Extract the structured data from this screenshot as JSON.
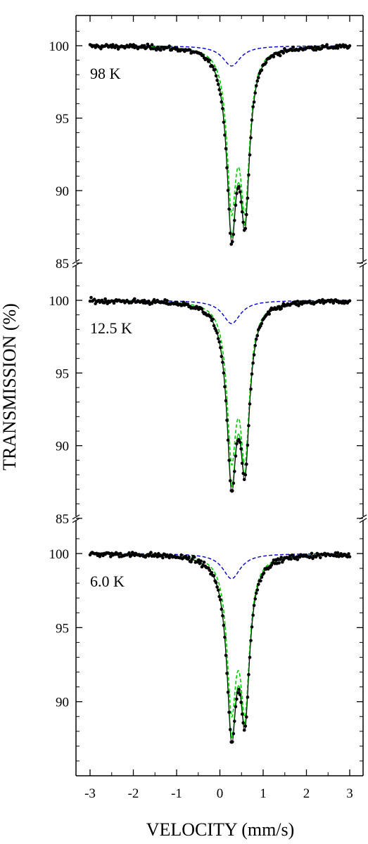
{
  "chart_data": {
    "type": "scatter",
    "xlabel": "VELOCITY (mm/s)",
    "ylabel": "TRANSMISSION (%)",
    "xlim": [
      -3.2,
      3.2
    ],
    "x_ticks": [
      -3,
      -2,
      -1,
      0,
      1,
      2,
      3
    ],
    "x_tick_labels": [
      "-3",
      "-2",
      "-1",
      "0",
      "1",
      "2",
      "3"
    ],
    "y_ticks": [
      100,
      95,
      90,
      85
    ],
    "y_tick_labels": [
      "100",
      "95",
      "90",
      "85"
    ],
    "axis_break": true,
    "colors": {
      "data_points": "#000000",
      "total_fit": "#000000",
      "main_component": "#00cc00",
      "minor_component": "#0000cc"
    },
    "panels": [
      {
        "label": "98 K",
        "ylim": [
          85,
          101.3
        ],
        "min_at_0_27": 86.4,
        "min_at_0_58": 87.6,
        "component_main": {
          "centers": [
            0.27,
            0.58
          ],
          "depths": [
            11.7,
            11.6
          ],
          "widths": [
            0.13,
            0.13
          ],
          "style": "dashed"
        },
        "component_minor": {
          "centers": [
            0.27
          ],
          "depths": [
            1.4
          ],
          "widths": [
            0.25
          ],
          "style": "dashed"
        }
      },
      {
        "label": "12.5 K",
        "ylim": [
          85,
          101.3
        ],
        "min_at_0_27": 86.8,
        "min_at_0_58": 88.0,
        "component_main": {
          "centers": [
            0.27,
            0.58
          ],
          "depths": [
            11.3,
            11.3
          ],
          "widths": [
            0.13,
            0.13
          ],
          "style": "dashed"
        },
        "component_minor": {
          "centers": [
            0.27
          ],
          "depths": [
            1.6
          ],
          "widths": [
            0.25
          ],
          "style": "dashed"
        }
      },
      {
        "label": "6.0 K",
        "ylim": [
          85.5,
          101.3
        ],
        "min_at_0_27": 87.2,
        "min_at_0_58": 88.4,
        "component_main": {
          "centers": [
            0.27,
            0.58
          ],
          "depths": [
            11.0,
            11.0
          ],
          "widths": [
            0.13,
            0.13
          ],
          "style": "dashed"
        },
        "component_minor": {
          "centers": [
            0.27
          ],
          "depths": [
            1.7
          ],
          "widths": [
            0.25
          ],
          "style": "dashed"
        }
      }
    ]
  }
}
